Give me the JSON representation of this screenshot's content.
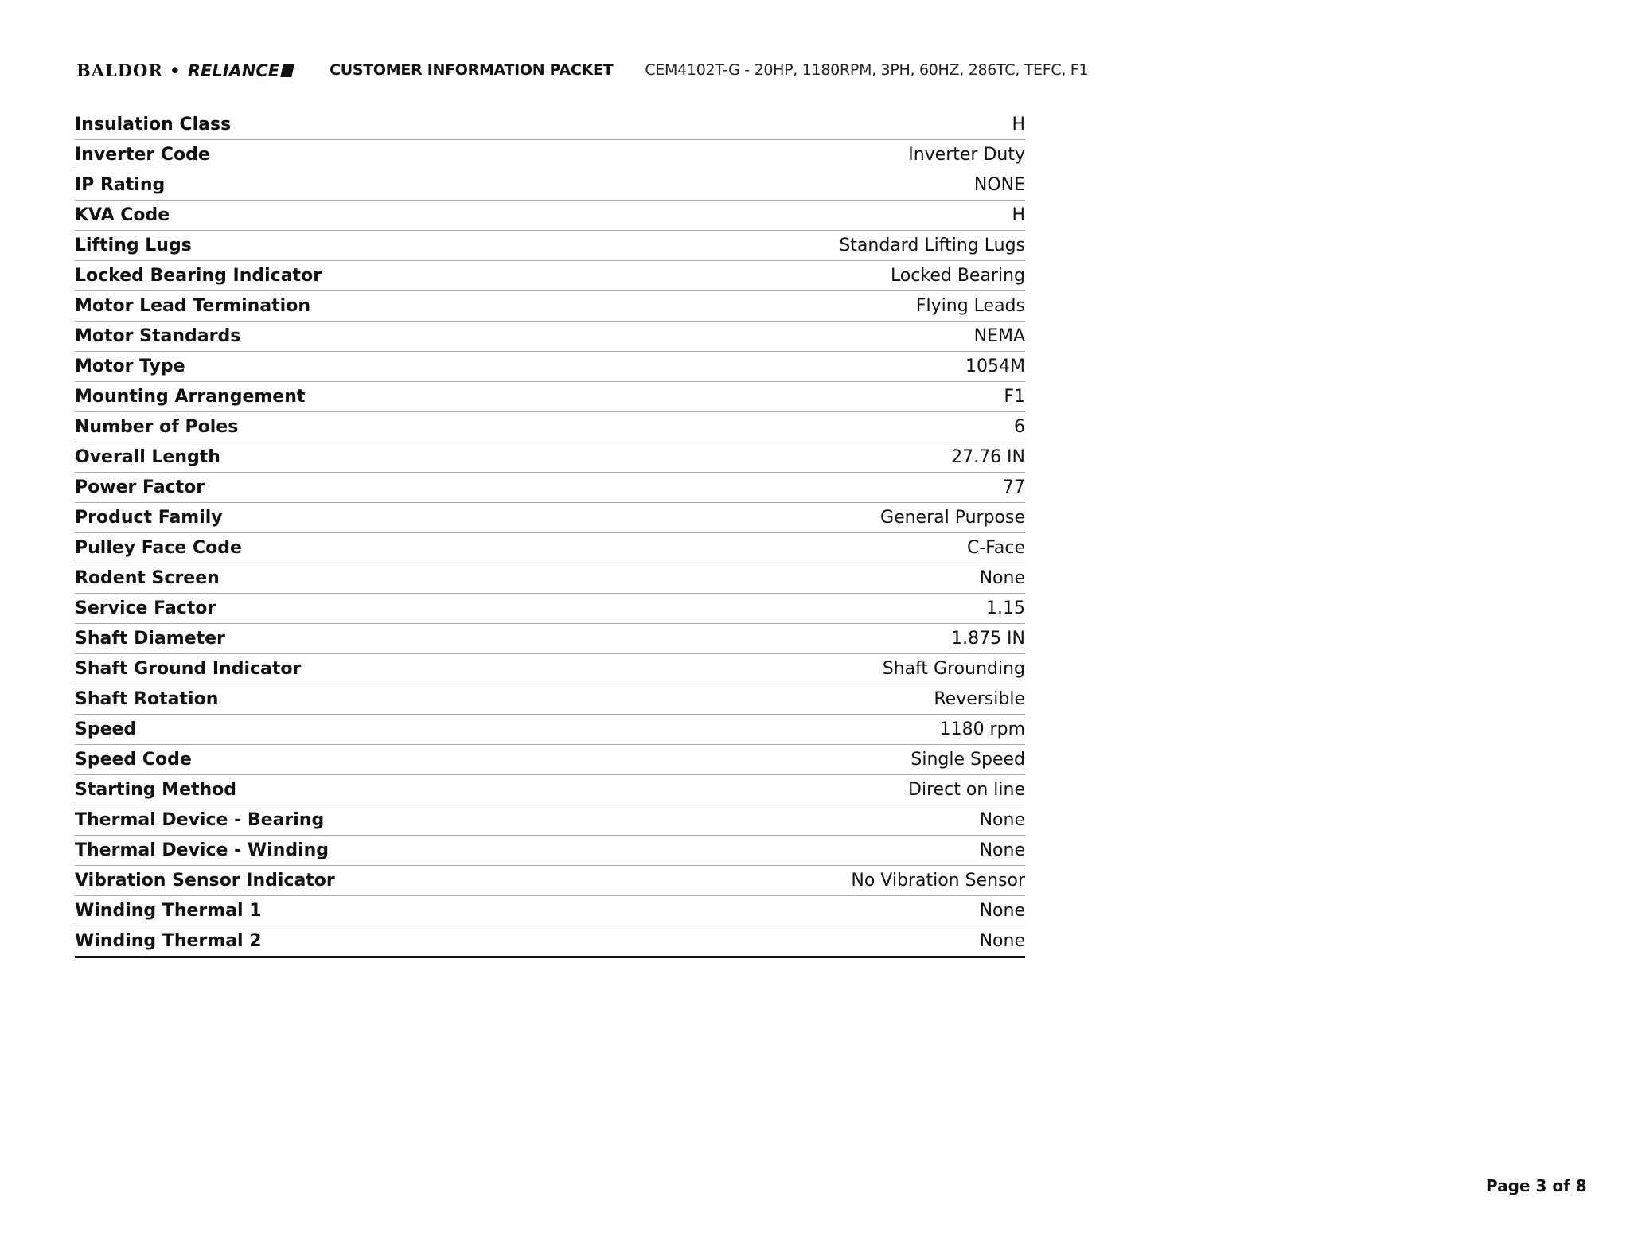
{
  "header": {
    "logo_text": "BALDOR • RELIANCE",
    "title": "CUSTOMER INFORMATION PACKET",
    "subtitle": "CEM4102T-G - 20HP, 1180RPM, 3PH, 60HZ, 286TC, TEFC, F1"
  },
  "specs": [
    {
      "label": "Insulation Class",
      "value": "H"
    },
    {
      "label": "Inverter Code",
      "value": "Inverter Duty"
    },
    {
      "label": "IP Rating",
      "value": "NONE"
    },
    {
      "label": "KVA Code",
      "value": "H"
    },
    {
      "label": "Lifting Lugs",
      "value": "Standard Lifting Lugs"
    },
    {
      "label": "Locked Bearing Indicator",
      "value": "Locked Bearing"
    },
    {
      "label": "Motor Lead Termination",
      "value": "Flying Leads"
    },
    {
      "label": "Motor Standards",
      "value": "NEMA"
    },
    {
      "label": "Motor Type",
      "value": "1054M"
    },
    {
      "label": "Mounting Arrangement",
      "value": "F1"
    },
    {
      "label": "Number of Poles",
      "value": "6"
    },
    {
      "label": "Overall Length",
      "value": "27.76 IN"
    },
    {
      "label": "Power Factor",
      "value": "77"
    },
    {
      "label": "Product Family",
      "value": "General Purpose"
    },
    {
      "label": "Pulley Face Code",
      "value": "C-Face"
    },
    {
      "label": "Rodent Screen",
      "value": "None"
    },
    {
      "label": "Service Factor",
      "value": "1.15"
    },
    {
      "label": "Shaft Diameter",
      "value": "1.875 IN"
    },
    {
      "label": "Shaft Ground Indicator",
      "value": "Shaft Grounding"
    },
    {
      "label": "Shaft Rotation",
      "value": "Reversible"
    },
    {
      "label": "Speed",
      "value": "1180 rpm"
    },
    {
      "label": "Speed Code",
      "value": "Single Speed"
    },
    {
      "label": "Starting Method",
      "value": "Direct on line"
    },
    {
      "label": "Thermal Device - Bearing",
      "value": "None"
    },
    {
      "label": "Thermal Device - Winding",
      "value": "None"
    },
    {
      "label": "Vibration Sensor Indicator",
      "value": "No Vibration Sensor"
    },
    {
      "label": "Winding Thermal 1",
      "value": "None"
    },
    {
      "label": "Winding Thermal 2",
      "value": "None"
    }
  ],
  "footer": {
    "page_label": "Page 3 of 8"
  }
}
